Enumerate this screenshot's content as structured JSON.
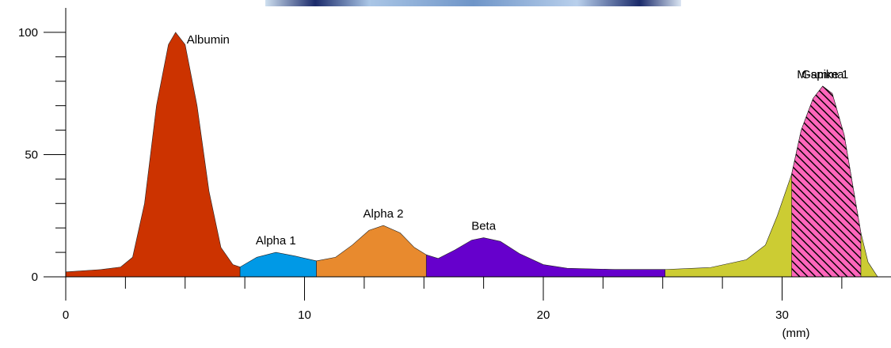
{
  "chart_data": {
    "type": "area",
    "x_label": "(mm)",
    "xlim": [
      0,
      34.6
    ],
    "ylim": [
      0,
      110
    ],
    "xticks": [
      0,
      10,
      20,
      30
    ],
    "yticks": [
      0,
      50,
      100
    ],
    "xticks_minor": [
      2.5,
      5,
      7.5,
      12.5,
      15,
      17.5,
      22.5,
      25,
      27.5,
      32.5
    ],
    "yticks_minor": [
      10,
      20,
      30,
      40,
      60,
      70,
      80,
      90
    ],
    "series": [
      {
        "name": "Albumin",
        "color": "#cc3300",
        "x": [
          0,
          1.5,
          2.3,
          2.8,
          3.3,
          3.8,
          4.3,
          4.6,
          5.0,
          5.5,
          6.0,
          6.5,
          7.0,
          7.3
        ],
        "values": [
          2,
          3,
          4,
          8,
          30,
          70,
          95,
          100,
          95,
          70,
          35,
          12,
          5,
          4
        ]
      },
      {
        "name": "Alpha 1",
        "color": "#0099e6",
        "x": [
          7.3,
          8.0,
          8.8,
          9.6,
          10.5
        ],
        "values": [
          4,
          8,
          10,
          8.5,
          6.5
        ]
      },
      {
        "name": "Alpha 2",
        "color": "#e88a2e",
        "x": [
          10.5,
          11.3,
          12.0,
          12.7,
          13.3,
          14.0,
          14.6,
          15.1
        ],
        "values": [
          6.5,
          8,
          13,
          19,
          21,
          18,
          12,
          9
        ]
      },
      {
        "name": "Beta",
        "color": "#6600cc",
        "x": [
          15.1,
          15.6,
          16.3,
          17.0,
          17.5,
          18.2,
          19.0,
          20.0,
          21.0,
          23.0,
          25.1
        ],
        "values": [
          9,
          7.5,
          11,
          15,
          16,
          14.5,
          9.5,
          5,
          3.5,
          3,
          3
        ]
      },
      {
        "name": "Gamma",
        "color": "#cccc33",
        "x": [
          25.1,
          27.0,
          28.5,
          29.3,
          29.8,
          30.4,
          30.8,
          31.3,
          31.7,
          32.1,
          32.6,
          33.0,
          33.3,
          33.6,
          34.0
        ],
        "values": [
          3,
          3.8,
          7,
          13,
          25,
          42,
          60,
          73,
          78,
          75,
          58,
          35,
          18,
          6,
          0
        ]
      },
      {
        "name": "M-spike 1",
        "color": "#ff66bb",
        "hatch": true,
        "x": [
          30.4,
          30.8,
          31.3,
          31.7,
          32.1,
          32.6,
          33.0,
          33.3
        ],
        "values": [
          42,
          60,
          73,
          78,
          75,
          58,
          35,
          18
        ]
      }
    ]
  }
}
